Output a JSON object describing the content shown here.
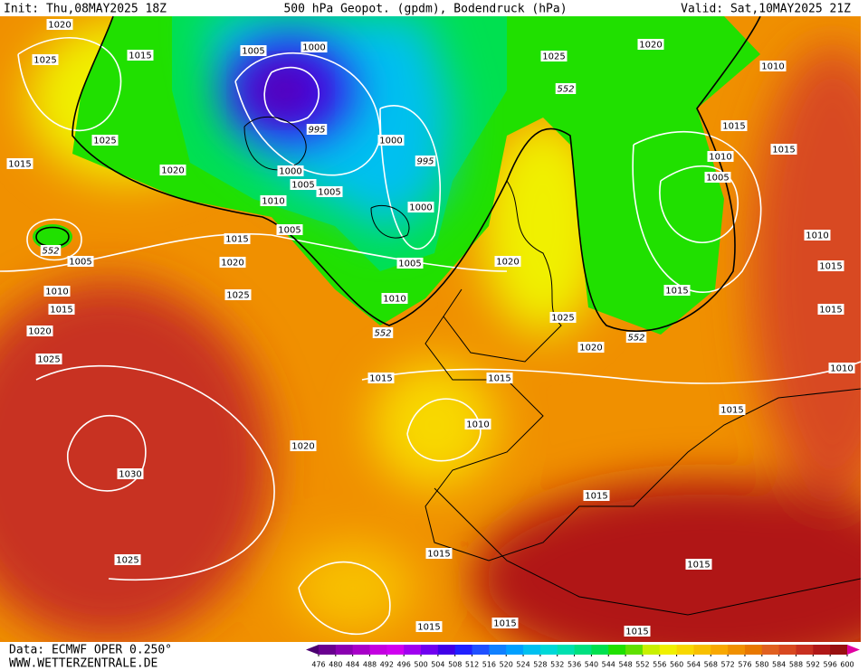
{
  "header": {
    "init": "Init: Thu,08MAY2025 18Z",
    "title": "500 hPa Geopot. (gpdm), Bodendruck (hPa)",
    "valid": "Valid: Sat,10MAY2025 21Z"
  },
  "footer": {
    "source": "Data: ECMWF OPER 0.250°",
    "site": "WWW.WETTERZENTRALE.DE"
  },
  "map": {
    "isobar_labels": [
      "1020",
      "1025",
      "1015",
      "1005",
      "1000",
      "1025",
      "1020",
      "1010",
      "552",
      "995",
      "1025",
      "1000",
      "1015",
      "1015",
      "1015",
      "1020",
      "1000",
      "995",
      "1010",
      "1005",
      "1005",
      "1005",
      "1010",
      "1000",
      "1005",
      "1015",
      "552",
      "1005",
      "1020",
      "1005",
      "1020",
      "1010",
      "1015",
      "1010",
      "1025",
      "1010",
      "1015",
      "1015",
      "1025",
      "1015",
      "1020",
      "552",
      "552",
      "1020",
      "1025",
      "1010",
      "1015",
      "1015",
      "1015",
      "1010",
      "1020",
      "1030",
      "1015",
      "1015",
      "1025",
      "1015",
      "1015",
      "1015",
      "1015"
    ]
  },
  "colorbar": {
    "ticks": [
      476,
      480,
      484,
      488,
      492,
      496,
      500,
      504,
      508,
      512,
      516,
      520,
      524,
      528,
      532,
      536,
      540,
      544,
      548,
      552,
      556,
      560,
      564,
      568,
      572,
      576,
      580,
      584,
      588,
      592,
      596,
      600
    ],
    "colors": [
      "#4b0070",
      "#6a0090",
      "#8a00b0",
      "#a800c8",
      "#c400e0",
      "#d000f0",
      "#a000f0",
      "#7000f0",
      "#4000e8",
      "#2020ff",
      "#2050ff",
      "#1080ff",
      "#00a0ff",
      "#00c0f0",
      "#00d8d8",
      "#00e0b0",
      "#00e080",
      "#00e050",
      "#20e000",
      "#60e000",
      "#c8f000",
      "#f0f000",
      "#f8d800",
      "#f8c000",
      "#f8a800",
      "#f09000",
      "#e87800",
      "#e06020",
      "#d84820",
      "#c83020",
      "#b01818",
      "#981010",
      "#e000a0"
    ]
  }
}
